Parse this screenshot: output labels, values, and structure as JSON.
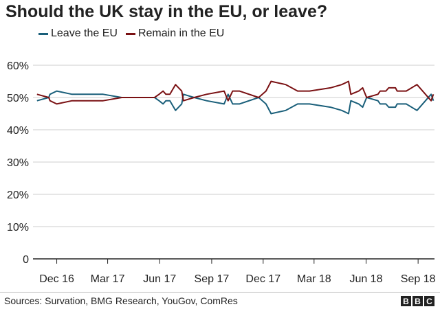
{
  "header": {
    "title": "Should the UK stay in the EU, or leave?"
  },
  "footer": {
    "source": "Sources: Survation, BMG Research, YouGov, ComRes",
    "logo_letters": [
      "B",
      "B",
      "C"
    ]
  },
  "colors": {
    "leave": "#1a5f7a",
    "remain": "#7a1113",
    "axis": "#222222",
    "grid": "#cccccc"
  },
  "chart_data": {
    "type": "line",
    "title": "Should the UK stay in the EU, or leave?",
    "xlabel": "",
    "ylabel": "",
    "ylim": [
      0,
      60
    ],
    "yticks": [
      0,
      10,
      20,
      30,
      40,
      50,
      60
    ],
    "ytick_labels": [
      "0",
      "10%",
      "20%",
      "30%",
      "40%",
      "50%",
      "60%"
    ],
    "xlim": [
      "2016-10-20",
      "2018-09-30"
    ],
    "xticks": [
      {
        "label": "Dec 16",
        "date": "2016-12-01"
      },
      {
        "label": "Mar 17",
        "date": "2017-03-01"
      },
      {
        "label": "Jun 17",
        "date": "2017-06-01"
      },
      {
        "label": "Sep 17",
        "date": "2017-09-01"
      },
      {
        "label": "Dec 17",
        "date": "2017-12-01"
      },
      {
        "label": "Mar 18",
        "date": "2018-03-01"
      },
      {
        "label": "Jun 18",
        "date": "2018-06-01"
      },
      {
        "label": "Sep 18",
        "date": "2018-09-01"
      }
    ],
    "grid": true,
    "legend": "top-left",
    "series": [
      {
        "name": "Leave the EU",
        "color": "#1a5f7a",
        "points": [
          [
            "2016-10-27",
            49
          ],
          [
            "2016-11-17",
            50
          ],
          [
            "2016-11-19",
            51
          ],
          [
            "2016-12-01",
            52
          ],
          [
            "2016-12-28",
            51
          ],
          [
            "2017-02-21",
            51
          ],
          [
            "2017-03-26",
            50
          ],
          [
            "2017-04-19",
            50
          ],
          [
            "2017-05-23",
            50
          ],
          [
            "2017-05-31",
            49
          ],
          [
            "2017-06-07",
            48
          ],
          [
            "2017-06-12",
            49
          ],
          [
            "2017-06-19",
            49
          ],
          [
            "2017-06-29",
            46
          ],
          [
            "2017-07-10",
            48
          ],
          [
            "2017-07-13",
            51
          ],
          [
            "2017-08-01",
            50
          ],
          [
            "2017-08-23",
            49
          ],
          [
            "2017-09-23",
            48
          ],
          [
            "2017-09-30",
            51
          ],
          [
            "2017-10-08",
            48
          ],
          [
            "2017-10-20",
            48
          ],
          [
            "2017-11-23",
            50
          ],
          [
            "2017-12-06",
            48
          ],
          [
            "2017-12-15",
            45
          ],
          [
            "2018-01-10",
            46
          ],
          [
            "2018-01-31",
            48
          ],
          [
            "2018-02-21",
            48
          ],
          [
            "2018-03-30",
            47
          ],
          [
            "2018-04-19",
            46
          ],
          [
            "2018-05-01",
            45
          ],
          [
            "2018-05-05",
            49
          ],
          [
            "2018-05-19",
            48
          ],
          [
            "2018-05-26",
            47
          ],
          [
            "2018-06-02",
            50
          ],
          [
            "2018-06-22",
            49
          ],
          [
            "2018-06-26",
            48
          ],
          [
            "2018-07-06",
            48
          ],
          [
            "2018-07-11",
            47
          ],
          [
            "2018-07-23",
            47
          ],
          [
            "2018-07-26",
            48
          ],
          [
            "2018-08-11",
            48
          ],
          [
            "2018-08-30",
            46
          ],
          [
            "2018-09-24",
            51
          ],
          [
            "2018-09-28",
            49
          ]
        ]
      },
      {
        "name": "Remain in the EU",
        "color": "#7a1113",
        "points": [
          [
            "2016-10-27",
            51
          ],
          [
            "2016-11-17",
            50
          ],
          [
            "2016-11-19",
            49
          ],
          [
            "2016-12-01",
            48
          ],
          [
            "2016-12-28",
            49
          ],
          [
            "2017-02-21",
            49
          ],
          [
            "2017-03-26",
            50
          ],
          [
            "2017-04-19",
            50
          ],
          [
            "2017-05-23",
            50
          ],
          [
            "2017-05-31",
            51
          ],
          [
            "2017-06-07",
            52
          ],
          [
            "2017-06-12",
            51
          ],
          [
            "2017-06-19",
            51
          ],
          [
            "2017-06-29",
            54
          ],
          [
            "2017-07-10",
            52
          ],
          [
            "2017-07-13",
            49
          ],
          [
            "2017-08-01",
            50
          ],
          [
            "2017-08-23",
            51
          ],
          [
            "2017-09-23",
            52
          ],
          [
            "2017-09-30",
            49
          ],
          [
            "2017-10-08",
            52
          ],
          [
            "2017-10-20",
            52
          ],
          [
            "2017-11-23",
            50
          ],
          [
            "2017-12-06",
            52
          ],
          [
            "2017-12-15",
            55
          ],
          [
            "2018-01-10",
            54
          ],
          [
            "2018-01-31",
            52
          ],
          [
            "2018-02-21",
            52
          ],
          [
            "2018-03-30",
            53
          ],
          [
            "2018-04-19",
            54
          ],
          [
            "2018-05-01",
            55
          ],
          [
            "2018-05-05",
            51
          ],
          [
            "2018-05-19",
            52
          ],
          [
            "2018-05-26",
            53
          ],
          [
            "2018-06-02",
            50
          ],
          [
            "2018-06-22",
            51
          ],
          [
            "2018-06-26",
            52
          ],
          [
            "2018-07-06",
            52
          ],
          [
            "2018-07-11",
            53
          ],
          [
            "2018-07-23",
            53
          ],
          [
            "2018-07-26",
            52
          ],
          [
            "2018-08-11",
            52
          ],
          [
            "2018-08-30",
            54
          ],
          [
            "2018-09-24",
            49
          ],
          [
            "2018-09-28",
            51
          ]
        ]
      }
    ]
  }
}
